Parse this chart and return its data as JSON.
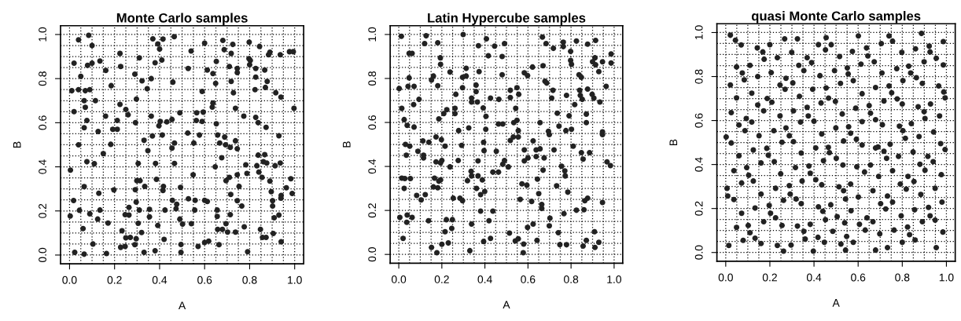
{
  "chart_data": [
    {
      "type": "scatter",
      "title": "Monte Carlo samples",
      "xlabel": "A",
      "ylabel": "B",
      "color": "#222222",
      "marker": "circle",
      "grid": true,
      "xlim": [
        -0.04,
        1.04
      ],
      "ylim": [
        -0.04,
        1.04
      ],
      "xticks": [
        {
          "value": 0,
          "label": "0.0"
        },
        {
          "value": 0.2,
          "label": "0.2"
        },
        {
          "value": 0.4,
          "label": "0.4"
        },
        {
          "value": 0.6,
          "label": "0.6"
        },
        {
          "value": 0.8,
          "label": "0.8"
        },
        {
          "value": 1,
          "label": "1.0"
        }
      ],
      "yticks": [
        {
          "value": 0,
          "label": "0.0"
        },
        {
          "value": 0.2,
          "label": "0.2"
        },
        {
          "value": 0.4,
          "label": "0.4"
        },
        {
          "value": 0.6,
          "label": "0.6"
        },
        {
          "value": 0.8,
          "label": "0.8"
        },
        {
          "value": 1,
          "label": "1.0"
        }
      ],
      "x": [
        0.04,
        0.085,
        0.1,
        0.02,
        0.08,
        0.1,
        0.135,
        0.05,
        0.01,
        0.04,
        0.07,
        0.09,
        0.115,
        0.065,
        0.02,
        0.07,
        0.077,
        0.065,
        0.04,
        0.127,
        0.004,
        0.077,
        0.11,
        0.15,
        0.065,
        0.018,
        0.003,
        0.044,
        0.09,
        0.125,
        0.135,
        0.13,
        0.06,
        0.104,
        0.023,
        0.065,
        0.164,
        0.171,
        0.197,
        0.183,
        0.192,
        0.212,
        0.212,
        0.224,
        0.185,
        0.161,
        0.224,
        0.227,
        0.16,
        0.25,
        0.26,
        0.29,
        0.31,
        0.322,
        0.297,
        0.293,
        0.345,
        0.363,
        0.37,
        0.392,
        0.415,
        0.4,
        0.38,
        0.41,
        0.465,
        0.459,
        0.363,
        0.368,
        0.348,
        0.331,
        0.305,
        0.382,
        0.397,
        0.403,
        0.432,
        0.455,
        0.412,
        0.466,
        0.455,
        0.466,
        0.49,
        0.299,
        0.313,
        0.292,
        0.334,
        0.386,
        0.417,
        0.415,
        0.296,
        0.264,
        0.247,
        0.264,
        0.31,
        0.355,
        0.355,
        0.305,
        0.32,
        0.233,
        0.25,
        0.27,
        0.227,
        0.247,
        0.29,
        0.296,
        0.331,
        0.38,
        0.42,
        0.424,
        0.392,
        0.457,
        0.476,
        0.473,
        0.49,
        0.502,
        0.493,
        0.495,
        0.495,
        0.527,
        0.54,
        0.525,
        0.552,
        0.549,
        0.528,
        0.558,
        0.556,
        0.541,
        0.571,
        0.6,
        0.618,
        0.565,
        0.594,
        0.563,
        0.589,
        0.577,
        0.589,
        0.6,
        0.612,
        0.637,
        0.652,
        0.649,
        0.634,
        0.637,
        0.652,
        0.658,
        0.667,
        0.676,
        0.647,
        0.612,
        0.6,
        0.656,
        0.656,
        0.658,
        0.679,
        0.664,
        0.689,
        0.693,
        0.714,
        0.737,
        0.745,
        0.695,
        0.71,
        0.716,
        0.714,
        0.695,
        0.702,
        0.737,
        0.745,
        0.753,
        0.745,
        0.765,
        0.776,
        0.791,
        0.681,
        0.687,
        0.725,
        0.718,
        0.71,
        0.718,
        0.728,
        0.737,
        0.745,
        0.745,
        0.774,
        0.783,
        0.788,
        0.798,
        0.797,
        0.8,
        0.803,
        0.827,
        0.827,
        0.824,
        0.827,
        0.838,
        0.873,
        0.838,
        0.832,
        0.841,
        0.855,
        0.867,
        0.861,
        0.876,
        0.848,
        0.857,
        0.873,
        0.844,
        0.867,
        0.884,
        0.89,
        0.878,
        0.87,
        0.89,
        0.896,
        0.902,
        0.902,
        0.909,
        0.905,
        0.913,
        0.936,
        0.93,
        0.916,
        0.939,
        0.936,
        0.977,
        0.994,
        0.997,
        0.983,
        0.963,
        0.989,
        0.94,
        0.939,
        0.93,
        0.94
      ],
      "values": [
        0.976,
        0.996,
        0.95,
        0.87,
        0.86,
        0.87,
        0.88,
        0.81,
        0.745,
        0.75,
        0.745,
        0.75,
        0.7,
        0.7,
        0.65,
        0.67,
        0.61,
        0.577,
        0.5,
        0.56,
        0.385,
        0.423,
        0.414,
        0.46,
        0.31,
        0.247,
        0.177,
        0.203,
        0.187,
        0.163,
        0.204,
        0.28,
        0.12,
        0.05,
        0.012,
        0.004,
        0.007,
        0.145,
        0.295,
        0.502,
        0.57,
        0.57,
        0.61,
        0.683,
        0.768,
        0.837,
        0.914,
        0.855,
        0.63,
        0.66,
        0.636,
        0.82,
        0.894,
        0.79,
        0.707,
        0.6,
        0.754,
        0.8,
        0.98,
        0.957,
        0.979,
        0.934,
        0.872,
        0.884,
        0.99,
        0.784,
        0.63,
        0.54,
        0.473,
        0.52,
        0.415,
        0.415,
        0.586,
        0.606,
        0.604,
        0.615,
        0.544,
        0.508,
        0.485,
        0.415,
        0.645,
        0.337,
        0.337,
        0.296,
        0.311,
        0.343,
        0.311,
        0.293,
        0.24,
        0.216,
        0.183,
        0.181,
        0.204,
        0.207,
        0.173,
        0.144,
        0.102,
        0.11,
        0.078,
        0.08,
        0.035,
        0.039,
        0.047,
        0.074,
        0.012,
        0.019,
        0.071,
        0.204,
        0.134,
        0.248,
        0.23,
        0.21,
        0.163,
        0.14,
        0.307,
        0.048,
        0.012,
        0.846,
        0.925,
        0.553,
        0.508,
        0.364,
        0.255,
        0.248,
        0.204,
        0.142,
        0.039,
        0.057,
        0.063,
        0.645,
        0.648,
        0.61,
        0.606,
        0.544,
        0.742,
        0.961,
        0.839,
        0.823,
        0.878,
        0.778,
        0.671,
        0.689,
        0.595,
        0.544,
        0.508,
        0.441,
        0.4,
        0.243,
        0.248,
        0.204,
        0.175,
        0.116,
        0.116,
        0.047,
        0.535,
        0.5,
        0.488,
        0.518,
        0.482,
        0.337,
        0.352,
        0.275,
        0.183,
        0.142,
        0.104,
        0.104,
        0.364,
        0.311,
        0.246,
        0.222,
        0.128,
        0.015,
        0.973,
        0.931,
        0.955,
        0.914,
        0.855,
        0.787,
        0.736,
        0.665,
        0.827,
        0.846,
        0.63,
        0.409,
        0.37,
        0.965,
        0.89,
        0.863,
        0.882,
        0.846,
        0.807,
        0.75,
        0.624,
        0.6,
        0.579,
        0.453,
        0.405,
        0.376,
        0.352,
        0.455,
        0.423,
        0.417,
        0.116,
        0.08,
        0.08,
        0.946,
        0.839,
        0.908,
        0.92,
        0.787,
        0.76,
        0.335,
        0.287,
        0.246,
        0.222,
        0.169,
        0.098,
        0.405,
        0.417,
        0.541,
        0.736,
        0.716,
        0.908,
        0.922,
        0.922,
        0.665,
        0.346,
        0.305,
        0.279,
        0.27,
        0.258,
        0.181,
        0.06
      ]
    },
    {
      "type": "scatter",
      "title": "Latin Hypercube samples",
      "xlabel": "A",
      "ylabel": "B",
      "color": "#222222",
      "marker": "circle",
      "grid": true,
      "xlim": [
        -0.04,
        1.04
      ],
      "ylim": [
        -0.04,
        1.04
      ],
      "xticks": [
        {
          "value": 0,
          "label": "0.0"
        },
        {
          "value": 0.2,
          "label": "0.2"
        },
        {
          "value": 0.4,
          "label": "0.4"
        },
        {
          "value": 0.6,
          "label": "0.6"
        },
        {
          "value": 0.8,
          "label": "0.8"
        },
        {
          "value": 1,
          "label": "1.0"
        }
      ],
      "yticks": [
        {
          "value": 0,
          "label": "0.0"
        },
        {
          "value": 0.2,
          "label": "0.2"
        },
        {
          "value": 0.4,
          "label": "0.4"
        },
        {
          "value": 0.6,
          "label": "0.6"
        },
        {
          "value": 0.8,
          "label": "0.8"
        },
        {
          "value": 1,
          "label": "1.0"
        }
      ],
      "x": [
        0.012,
        0.002,
        0.014,
        0.025,
        0.039,
        0.048,
        0.062,
        0.048,
        0.043,
        0.071,
        0.069,
        0.094,
        0.071,
        0.031,
        0.051,
        0.035,
        0.014,
        0.028,
        0.054,
        0.025,
        0.005,
        0.039,
        0.037,
        0.062,
        0.02,
        0.083,
        0.104,
        0.089,
        0.115,
        0.115,
        0.112,
        0.14,
        0.123,
        0.138,
        0.12,
        0.127,
        0.181,
        0.193,
        0.194,
        0.161,
        0.152,
        0.181,
        0.186,
        0.173,
        0.198,
        0.166,
        0.194,
        0.186,
        0.173,
        0.2,
        0.194,
        0.161,
        0.181,
        0.152,
        0.177,
        0.2,
        0.215,
        0.221,
        0.23,
        0.246,
        0.249,
        0.253,
        0.238,
        0.215,
        0.209,
        0.223,
        0.238,
        0.261,
        0.261,
        0.265,
        0.278,
        0.276,
        0.284,
        0.296,
        0.296,
        0.313,
        0.313,
        0.296,
        0.292,
        0.299,
        0.33,
        0.338,
        0.319,
        0.336,
        0.338,
        0.325,
        0.338,
        0.338,
        0.359,
        0.359,
        0.373,
        0.37,
        0.365,
        0.361,
        0.368,
        0.38,
        0.38,
        0.368,
        0.388,
        0.394,
        0.396,
        0.392,
        0.404,
        0.405,
        0.399,
        0.394,
        0.407,
        0.416,
        0.426,
        0.419,
        0.426,
        0.437,
        0.437,
        0.463,
        0.453,
        0.445,
        0.465,
        0.463,
        0.483,
        0.48,
        0.48,
        0.491,
        0.483,
        0.491,
        0.509,
        0.514,
        0.518,
        0.518,
        0.518,
        0.532,
        0.534,
        0.549,
        0.557,
        0.543,
        0.549,
        0.555,
        0.555,
        0.541,
        0.555,
        0.564,
        0.572,
        0.578,
        0.58,
        0.583,
        0.598,
        0.583,
        0.583,
        0.6,
        0.595,
        0.598,
        0.617,
        0.624,
        0.624,
        0.621,
        0.638,
        0.638,
        0.644,
        0.65,
        0.642,
        0.656,
        0.656,
        0.664,
        0.664,
        0.67,
        0.67,
        0.667,
        0.675,
        0.684,
        0.679,
        0.687,
        0.699,
        0.695,
        0.702,
        0.699,
        0.71,
        0.716,
        0.718,
        0.721,
        0.733,
        0.736,
        0.744,
        0.741,
        0.748,
        0.764,
        0.764,
        0.756,
        0.767,
        0.771,
        0.773,
        0.779,
        0.776,
        0.779,
        0.785,
        0.791,
        0.798,
        0.798,
        0.802,
        0.802,
        0.81,
        0.817,
        0.825,
        0.825,
        0.837,
        0.848,
        0.84,
        0.843,
        0.852,
        0.848,
        0.856,
        0.856,
        0.86,
        0.864,
        0.877,
        0.871,
        0.871,
        0.871,
        0.877,
        0.877,
        0.886,
        0.9,
        0.898,
        0.906,
        0.909,
        0.911,
        0.914,
        0.911,
        0.914,
        0.929,
        0.929,
        0.934,
        0.946,
        0.946,
        0.946,
        0.946,
        0.963,
        0.967,
        0.983,
        0.986,
        0.986
      ],
      "values": [
        0.992,
        0.754,
        0.664,
        0.613,
        0.587,
        0.914,
        0.914,
        0.803,
        0.764,
        0.764,
        0.681,
        0.705,
        0.579,
        0.5,
        0.492,
        0.451,
        0.347,
        0.345,
        0.345,
        0.3,
        0.168,
        0.179,
        0.146,
        0.168,
        0.073,
        0.268,
        0.248,
        0.469,
        0.451,
        0.439,
        0.516,
        0.51,
        0.272,
        0.153,
        0.959,
        0.994,
        0.962,
        0.894,
        0.864,
        0.811,
        0.793,
        0.767,
        0.616,
        0.534,
        0.522,
        0.347,
        0.339,
        0.333,
        0.421,
        0.427,
        0.416,
        0.307,
        0.303,
        0.032,
        0.008,
        0.046,
        0.103,
        0.158,
        0.052,
        0.118,
        0.158,
        0.256,
        0.398,
        0.492,
        0.64,
        0.658,
        0.829,
        0.664,
        0.64,
        0.728,
        0.563,
        0.427,
        0.256,
        0.244,
        0.805,
        0.811,
        0.846,
        0.758,
        0.496,
        1.0,
        0.017,
        0.138,
        0.335,
        0.378,
        0.357,
        0.575,
        0.693,
        0.711,
        0.77,
        0.74,
        0.831,
        0.949,
        0.693,
        0.3,
        0.357,
        0.272,
        0.197,
        0.425,
        0.339,
        0.51,
        0.472,
        0.666,
        0.569,
        0.628,
        0.286,
        0.059,
        0.98,
        0.903,
        0.711,
        0.153,
        0.073,
        0.197,
        0.374,
        0.374,
        0.469,
        0.947,
        0.705,
        0.593,
        0.593,
        0.817,
        0.9,
        0.959,
        0.41,
        0.427,
        0.398,
        0.097,
        0.746,
        0.713,
        0.518,
        0.534,
        0.599,
        0.758,
        0.728,
        0.664,
        0.61,
        0.563,
        0.534,
        0.061,
        0.071,
        0.25,
        0.321,
        0.008,
        0.047,
        0.826,
        0.813,
        0.475,
        0.425,
        0.439,
        0.315,
        0.123,
        0.241,
        0.138,
        0.516,
        0.852,
        0.445,
        0.475,
        0.342,
        0.276,
        0.064,
        0.599,
        0.48,
        0.227,
        0.209,
        0.383,
        0.858,
        0.988,
        0.439,
        0.959,
        0.787,
        0.779,
        0.545,
        0.56,
        0.165,
        0.13,
        0.711,
        0.746,
        0.937,
        0.475,
        0.312,
        0.642,
        0.583,
        0.099,
        0.044,
        0.965,
        0.945,
        0.401,
        0.185,
        0.38,
        0.357,
        0.723,
        0.563,
        0.044,
        0.283,
        0.63,
        0.923,
        0.882,
        0.864,
        0.569,
        0.492,
        0.681,
        0.97,
        0.201,
        0.817,
        0.805,
        0.746,
        0.723,
        0.705,
        0.463,
        0.433,
        0.038,
        0.203,
        0.244,
        0.256,
        0.064,
        0.638,
        0.599,
        0.752,
        0.956,
        0.463,
        0.876,
        0.728,
        0.711,
        0.103,
        0.032,
        0.973,
        0.894,
        0.862,
        0.831,
        0.055,
        0.693,
        0.876,
        0.557,
        0.545,
        0.236,
        0.764,
        0.421,
        0.404,
        0.911,
        0.87
      ]
    },
    {
      "type": "scatter",
      "title": "quasi Monte Carlo samples",
      "xlabel": "A",
      "ylabel": "B",
      "color": "#222222",
      "marker": "circle",
      "grid": true,
      "xlim": [
        -0.04,
        1.04
      ],
      "ylim": [
        -0.04,
        1.04
      ],
      "xticks": [
        {
          "value": 0,
          "label": "0.0"
        },
        {
          "value": 0.2,
          "label": "0.2"
        },
        {
          "value": 0.4,
          "label": "0.4"
        },
        {
          "value": 0.6,
          "label": "0.6"
        },
        {
          "value": 0.8,
          "label": "0.8"
        },
        {
          "value": 1,
          "label": "1.0"
        }
      ],
      "yticks": [
        {
          "value": 0,
          "label": "0.0"
        },
        {
          "value": 0.2,
          "label": "0.2"
        },
        {
          "value": 0.4,
          "label": "0.4"
        },
        {
          "value": 0.6,
          "label": "0.6"
        },
        {
          "value": 0.8,
          "label": "0.8"
        },
        {
          "value": 1,
          "label": "1.0"
        }
      ],
      "x": [
        0.021,
        0.044,
        0.07,
        0.049,
        0.075,
        0.084,
        0.11,
        0.021,
        0.049,
        0.025,
        0.06,
        0.087,
        0.093,
        0.118,
        0.118,
        0.002,
        0.025,
        0.06,
        0.037,
        0.072,
        0.095,
        0.104,
        0.125,
        0.006,
        0.009,
        0.037,
        0.072,
        0.049,
        0.102,
        0.11,
        0.079,
        0.014,
        0.133,
        0.16,
        0.133,
        0.16,
        0.172,
        0.125,
        0.151,
        0.16,
        0.145,
        0.172,
        0.145,
        0.143,
        0.168,
        0.174,
        0.2,
        0.206,
        0.188,
        0.209,
        0.186,
        0.193,
        0.218,
        0.22,
        0.197,
        0.203,
        0.226,
        0.226,
        0.234,
        0.234,
        0.246,
        0.246,
        0.255,
        0.249,
        0.255,
        0.262,
        0.262,
        0.267,
        0.273,
        0.269,
        0.273,
        0.288,
        0.288,
        0.292,
        0.296,
        0.299,
        0.304,
        0.307,
        0.307,
        0.316,
        0.319,
        0.325,
        0.325,
        0.331,
        0.334,
        0.339,
        0.342,
        0.346,
        0.342,
        0.354,
        0.36,
        0.354,
        0.369,
        0.369,
        0.374,
        0.377,
        0.383,
        0.383,
        0.389,
        0.394,
        0.4,
        0.408,
        0.408,
        0.397,
        0.418,
        0.42,
        0.42,
        0.427,
        0.432,
        0.435,
        0.435,
        0.44,
        0.443,
        0.447,
        0.452,
        0.455,
        0.452,
        0.455,
        0.465,
        0.47,
        0.466,
        0.478,
        0.476,
        0.485,
        0.493,
        0.497,
        0.499,
        0.501,
        0.505,
        0.513,
        0.516,
        0.52,
        0.522,
        0.528,
        0.534,
        0.531,
        0.534,
        0.539,
        0.543,
        0.543,
        0.548,
        0.551,
        0.555,
        0.557,
        0.566,
        0.566,
        0.568,
        0.574,
        0.578,
        0.578,
        0.589,
        0.592,
        0.594,
        0.601,
        0.601,
        0.606,
        0.613,
        0.618,
        0.618,
        0.618,
        0.629,
        0.632,
        0.638,
        0.64,
        0.644,
        0.65,
        0.656,
        0.656,
        0.667,
        0.667,
        0.673,
        0.679,
        0.679,
        0.679,
        0.679,
        0.69,
        0.693,
        0.698,
        0.702,
        0.705,
        0.708,
        0.71,
        0.717,
        0.717,
        0.725,
        0.729,
        0.733,
        0.733,
        0.74,
        0.74,
        0.745,
        0.752,
        0.756,
        0.756,
        0.756,
        0.763,
        0.775,
        0.777,
        0.783,
        0.787,
        0.791,
        0.795,
        0.798,
        0.8,
        0.803,
        0.803,
        0.8,
        0.814,
        0.818,
        0.824,
        0.826,
        0.829,
        0.833,
        0.838,
        0.841,
        0.849,
        0.853,
        0.856,
        0.858,
        0.86,
        0.864,
        0.872,
        0.876,
        0.88,
        0.884,
        0.891,
        0.887,
        0.891,
        0.899,
        0.899,
        0.903,
        0.903,
        0.916,
        0.919,
        0.922,
        0.926,
        0.926,
        0.928,
        0.942,
        0.94,
        0.949,
        0.949,
        0.954,
        0.954,
        0.965,
        0.969,
        0.974,
        0.977,
        0.98,
        0.984,
        0.986,
        0.986,
        0.988,
        0.994,
        0.994
      ],
      "values": [
        0.988,
        0.965,
        0.944,
        0.844,
        0.816,
        0.785,
        0.851,
        0.762,
        0.703,
        0.636,
        0.58,
        0.554,
        0.609,
        0.724,
        0.593,
        0.525,
        0.498,
        0.44,
        0.372,
        0.316,
        0.386,
        0.351,
        0.325,
        0.292,
        0.257,
        0.241,
        0.178,
        0.114,
        0.123,
        0.09,
        0.055,
        0.032,
        0.065,
        0.041,
        0.202,
        0.266,
        0.14,
        0.466,
        0.531,
        0.407,
        0.671,
        0.644,
        0.8,
        0.93,
        0.912,
        0.879,
        0.945,
        0.818,
        0.7,
        0.683,
        0.474,
        0.442,
        0.554,
        0.413,
        0.214,
        0.178,
        0.158,
        0.292,
        0.032,
        0.886,
        0.762,
        0.621,
        0.501,
        0.358,
        0.123,
        0.006,
        0.237,
        0.971,
        0.792,
        0.742,
        0.566,
        0.531,
        0.304,
        0.266,
        0.034,
        0.91,
        0.771,
        0.644,
        0.504,
        0.386,
        0.243,
        0.12,
        0.971,
        0.851,
        0.71,
        0.593,
        0.452,
        0.325,
        0.222,
        0.096,
        0.061,
        0.827,
        0.886,
        0.66,
        0.621,
        0.393,
        0.36,
        0.128,
        0.863,
        0.742,
        0.597,
        0.475,
        0.331,
        0.006,
        0.069,
        0.208,
        0.945,
        0.804,
        0.68,
        0.539,
        0.308,
        0.187,
        0.417,
        0.046,
        0.149,
        0.977,
        0.921,
        0.748,
        0.478,
        0.454,
        0.702,
        0.945,
        0.217,
        0.096,
        0.827,
        0.687,
        0.566,
        0.428,
        0.163,
        0.299,
        0.891,
        0.769,
        0.038,
        0.63,
        0.507,
        0.398,
        0.281,
        0.135,
        0.011,
        0.243,
        0.073,
        0.839,
        0.812,
        0.572,
        0.542,
        0.311,
        0.19,
        0.914,
        0.781,
        0.046,
        0.656,
        0.515,
        0.39,
        0.252,
        0.985,
        0.128,
        0.856,
        0.722,
        0.595,
        0.489,
        0.366,
        0.102,
        0.93,
        0.158,
        0.894,
        0.668,
        0.633,
        0.398,
        0.14,
        0.281,
        0.867,
        0.75,
        0.604,
        0.475,
        0.011,
        0.48,
        0.346,
        0.085,
        0.222,
        0.95,
        0.816,
        0.581,
        0.689,
        0.46,
        0.198,
        0.428,
        0.022,
        0.257,
        0.985,
        0.757,
        0.492,
        0.726,
        0.961,
        0.372,
        0.229,
        0.102,
        0.836,
        0.698,
        0.437,
        0.574,
        0.311,
        0.167,
        0.91,
        0.675,
        0.781,
        0.554,
        0.046,
        0.519,
        0.288,
        0.116,
        0.346,
        0.847,
        0.081,
        0.816,
        0.586,
        0.457,
        0.323,
        0.194,
        0.057,
        0.926,
        0.795,
        0.663,
        0.527,
        0.401,
        0.264,
        0.14,
        0.996,
        0.769,
        0.867,
        0.64,
        0.609,
        0.374,
        0.437,
        0.205,
        0.938,
        0.912,
        0.167,
        0.675,
        0.548,
        0.413,
        0.292,
        0.147,
        0.022,
        0.883,
        0.757,
        0.621,
        0.495,
        0.354,
        0.229,
        0.093,
        0.959,
        0.853,
        0.73,
        0.703,
        0.468
      ]
    }
  ]
}
